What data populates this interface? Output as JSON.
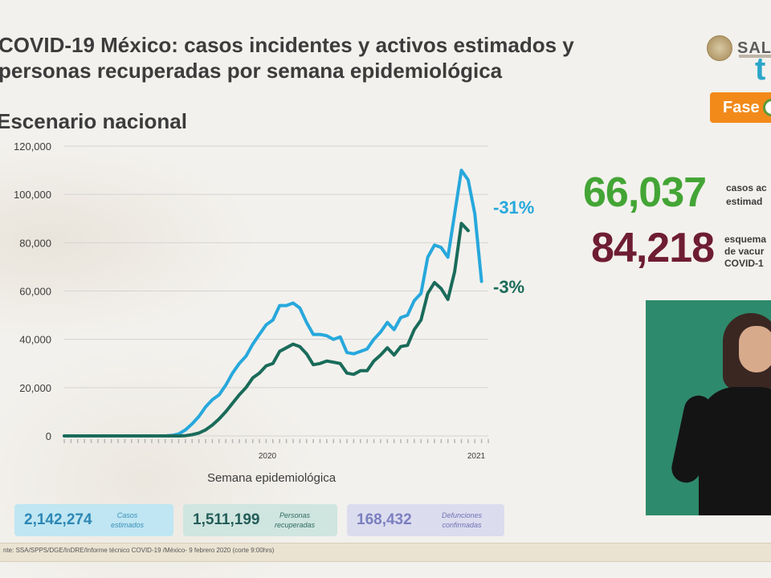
{
  "header": {
    "title": "COVID-19 México: casos incidentes y activos estimados y personas recuperadas por semana epidemiológica",
    "subtitle": "Escenario nacional",
    "logo_text": "SALU",
    "fase_label": "Fase"
  },
  "stats": {
    "active_value": "66,037",
    "active_label_line1": "casos ac",
    "active_label_line2": "estimad",
    "vaccine_value": "84,218",
    "vaccine_label_line1": "esquema",
    "vaccine_label_line2": "de vacur",
    "vaccine_label_line3": "COVID-1"
  },
  "chart_data": {
    "type": "line",
    "title": "",
    "xlabel": "Semana epidemiológica",
    "ylabel": "",
    "ylim": [
      0,
      120000
    ],
    "yticks": [
      "0",
      "20,000",
      "40,000",
      "60,000",
      "80,000",
      "100,000",
      "120,000"
    ],
    "x_year_labels": [
      "2020",
      "2021"
    ],
    "series": [
      {
        "color": "#27a8dc",
        "end_label": "-31%",
        "values": [
          0,
          0,
          0,
          0,
          0,
          0,
          0,
          0,
          0,
          0,
          0,
          0,
          0,
          0,
          0,
          0,
          200,
          800,
          2500,
          5000,
          8000,
          12000,
          15000,
          17000,
          21000,
          26000,
          30000,
          33000,
          38000,
          42000,
          46000,
          48000,
          54000,
          54000,
          55000,
          53000,
          47000,
          42000,
          42000,
          41500,
          40000,
          41000,
          34500,
          34000,
          35000,
          36000,
          40000,
          43000,
          47000,
          44000,
          49000,
          50000,
          56000,
          59000,
          74000,
          79000,
          78000,
          74000,
          92000,
          110000,
          106000,
          92000,
          64000
        ]
      },
      {
        "color": "#1a6b5a",
        "end_label": "-3%",
        "values": [
          0,
          0,
          0,
          0,
          0,
          0,
          0,
          0,
          0,
          0,
          0,
          0,
          0,
          0,
          0,
          0,
          0,
          0,
          100,
          500,
          1200,
          2500,
          4500,
          7000,
          10000,
          13500,
          17000,
          20000,
          24000,
          26000,
          29000,
          30000,
          35000,
          36500,
          38000,
          37000,
          34000,
          29500,
          30000,
          31000,
          30500,
          30000,
          26000,
          25500,
          27000,
          27000,
          31000,
          33500,
          36500,
          33500,
          37000,
          37500,
          44000,
          48000,
          59000,
          63500,
          61000,
          56500,
          68000,
          88000,
          85000
        ]
      }
    ]
  },
  "summary": {
    "cases_value": "2,142,274",
    "cases_label_1": "Casos",
    "cases_label_2": "estimados",
    "recovered_value": "1,511,199",
    "recovered_label_1": "Personas",
    "recovered_label_2": "recuperadas",
    "deaths_value": "168,432",
    "deaths_label_1": "Defunciones",
    "deaths_label_2": "confirmadas"
  },
  "footer": {
    "source": "nte: SSA/SPPS/DGE/InDRE/Informe técnico COVID-19 /México- 9 febrero 2020 (corte 9:00hrs)"
  }
}
